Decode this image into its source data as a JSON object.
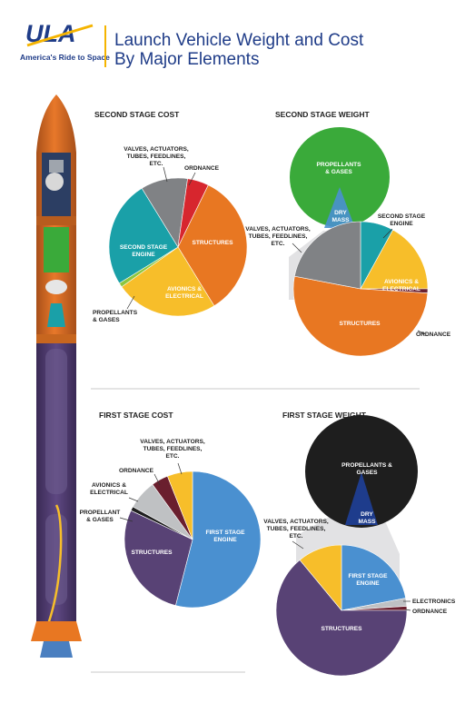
{
  "header": {
    "logo_text": "ULA",
    "tagline": "America's Ride to Space",
    "title_line1": "Launch Vehicle Weight and Cost",
    "title_line2": "By Major Elements"
  },
  "colors": {
    "orange": "#E87722",
    "yellow": "#F7BE2A",
    "teal": "#1AA0A8",
    "gray": "#808285",
    "red": "#D7262E",
    "green": "#3AAA3A",
    "blue": "#4A90D0",
    "purple": "#584275",
    "maroon": "#6A1F2E",
    "light_gray": "#BFC1C3",
    "lime": "#8DC63F",
    "black": "#1E1E1E",
    "navy": "#1E3C8C",
    "ula_blue": "#1F3C88",
    "ula_yellow": "#F5B400"
  },
  "chart_data": [
    {
      "type": "pie",
      "title": "SECOND STAGE COST",
      "slices": [
        {
          "label": "STRUCTURES",
          "value": 34,
          "color": "orange"
        },
        {
          "label": "AVIONICS & ELECTRICAL",
          "value": 24,
          "color": "yellow"
        },
        {
          "label": "PROPELLANTS & GASES",
          "value": 1,
          "color": "lime"
        },
        {
          "label": "SECOND STAGE ENGINE",
          "value": 25,
          "color": "teal"
        },
        {
          "label": "VALVES, ACTUATORS, TUBES, FEEDLINES, ETC.",
          "value": 11,
          "color": "gray"
        },
        {
          "label": "ORDNANCE",
          "value": 5,
          "color": "red"
        }
      ]
    },
    {
      "type": "pie",
      "title": "SECOND STAGE WEIGHT",
      "slices": [
        {
          "label": "PROPELLANTS & GASES",
          "value": 100,
          "color": "green"
        },
        {
          "label": "DRY MASS",
          "value": 0,
          "color": "blue"
        }
      ],
      "breakdown_title": "DRY MASS",
      "breakdown": [
        {
          "label": "SECOND STAGE ENGINE",
          "value": 8,
          "color": "teal"
        },
        {
          "label": "AVIONICS & ELECTRICAL",
          "value": 17,
          "color": "yellow"
        },
        {
          "label": "ORDNANCE",
          "value": 1,
          "color": "maroon"
        },
        {
          "label": "STRUCTURES",
          "value": 52,
          "color": "orange"
        },
        {
          "label": "VALVES, ACTUATORS, TUBES, FEEDLINES, ETC.",
          "value": 22,
          "color": "gray"
        }
      ]
    },
    {
      "type": "pie",
      "title": "FIRST STAGE COST",
      "slices": [
        {
          "label": "FIRST STAGE ENGINE",
          "value": 54,
          "color": "blue"
        },
        {
          "label": "STRUCTURES",
          "value": 28,
          "color": "purple"
        },
        {
          "label": "PROPELLANT & GASES",
          "value": 1,
          "color": "black"
        },
        {
          "label": "AVIONICS & ELECTRICAL",
          "value": 7,
          "color": "light_gray"
        },
        {
          "label": "ORDNANCE",
          "value": 4,
          "color": "maroon"
        },
        {
          "label": "VALVES, ACTUATORS, TUBES, FEEDLINES, ETC.",
          "value": 6,
          "color": "yellow"
        }
      ]
    },
    {
      "type": "pie",
      "title": "FIRST STAGE WEIGHT",
      "slices": [
        {
          "label": "PROPELLANTS & GASES",
          "value": 100,
          "color": "black"
        },
        {
          "label": "DRY MASS",
          "value": 0,
          "color": "navy"
        }
      ],
      "breakdown_title": "DRY MASS",
      "breakdown": [
        {
          "label": "FIRST STAGE ENGINE",
          "value": 22,
          "color": "blue"
        },
        {
          "label": "ELECTRONICS",
          "value": 2,
          "color": "light_gray"
        },
        {
          "label": "ORDNANCE",
          "value": 1,
          "color": "maroon"
        },
        {
          "label": "STRUCTURES",
          "value": 64,
          "color": "purple"
        },
        {
          "label": "VALVES, ACTUATORS, TUBES, FEEDLINES, ETC.",
          "value": 11,
          "color": "yellow"
        }
      ]
    }
  ],
  "labels": {
    "c1": {
      "valves": [
        "VALVES, ACTUATORS,",
        "TUBES, FEEDLINES,",
        "ETC."
      ],
      "ordnance": [
        "ORDNANCE"
      ],
      "structures": [
        "STRUCTURES"
      ],
      "engine": [
        "SECOND STAGE",
        "ENGINE"
      ],
      "avionics": [
        "AVIONICS &",
        "ELECTRICAL"
      ],
      "propellants": [
        "PROPELLANTS",
        "& GASES"
      ]
    },
    "c2": {
      "propellants": [
        "PROPELLANTS",
        "& GASES"
      ],
      "drymass": [
        "DRY",
        "MASS"
      ],
      "valves": [
        "VALVES, ACTUATORS,",
        "TUBES, FEEDLINES,",
        "ETC."
      ],
      "engine": [
        "SECOND STAGE",
        "ENGINE"
      ],
      "avionics": [
        "AVIONICS &",
        "ELECTRICAL"
      ],
      "structures": [
        "STRUCTURES"
      ],
      "ordnance": [
        "ORDNANCE"
      ]
    },
    "c3": {
      "valves": [
        "VALVES, ACTUATORS,",
        "TUBES, FEEDLINES,",
        "ETC."
      ],
      "ordnance": [
        "ORDNANCE"
      ],
      "avionics": [
        "AVIONICS &",
        "ELECTRICAL"
      ],
      "propellant": [
        "PROPELLANT",
        "& GASES"
      ],
      "structures": [
        "STRUCTURES"
      ],
      "engine": [
        "FIRST STAGE",
        "ENGINE"
      ]
    },
    "c4": {
      "propellants": [
        "PROPELLANTS &",
        "GASES"
      ],
      "drymass": [
        "DRY",
        "MASS"
      ],
      "valves": [
        "VALVES, ACTUATORS,",
        "TUBES, FEEDLINES,",
        "ETC."
      ],
      "engine": [
        "FIRST STAGE",
        "ENGINE"
      ],
      "electronics": [
        "ELECTRONICS"
      ],
      "ordnance": [
        "ORDNANCE"
      ],
      "structures": [
        "STRUCTURES"
      ]
    }
  }
}
